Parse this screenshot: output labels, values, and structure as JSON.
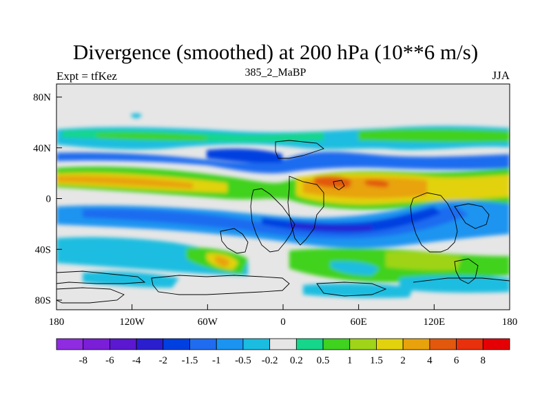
{
  "title": "Divergence (smoothed) at 200 hPa (10**6 m/s)",
  "left_label": "Expt = tfKez",
  "center_label": "385_2_MaBP",
  "right_label": "JJA",
  "map": {
    "projection": "cylindrical-equidistant",
    "lon_range": [
      -180,
      180
    ],
    "lat_range": [
      -90,
      90
    ],
    "x_ticks": [
      "180",
      "120W",
      "60W",
      "0",
      "60E",
      "120E",
      "180"
    ],
    "y_ticks": [
      "80N",
      "40N",
      "0",
      "40S",
      "80S"
    ],
    "background_color": "#e6e6e6",
    "land_outline": "black"
  },
  "colorbar": {
    "levels": [
      "-8",
      "-6",
      "-4",
      "-2",
      "-1.5",
      "-1",
      "-0.5",
      "-0.2",
      "0.2",
      "0.5",
      "1",
      "1.5",
      "2",
      "4",
      "6",
      "8"
    ],
    "colors": [
      "#8f2be0",
      "#7a1ed8",
      "#5b18d0",
      "#2a1ecf",
      "#0040e0",
      "#1f6cf0",
      "#1a94f0",
      "#1abde0",
      "#e6e6e6",
      "#15d68a",
      "#3fd21f",
      "#9fd419",
      "#e2d20e",
      "#e8a30c",
      "#e2580d",
      "#e8300d",
      "#e50005"
    ]
  }
}
